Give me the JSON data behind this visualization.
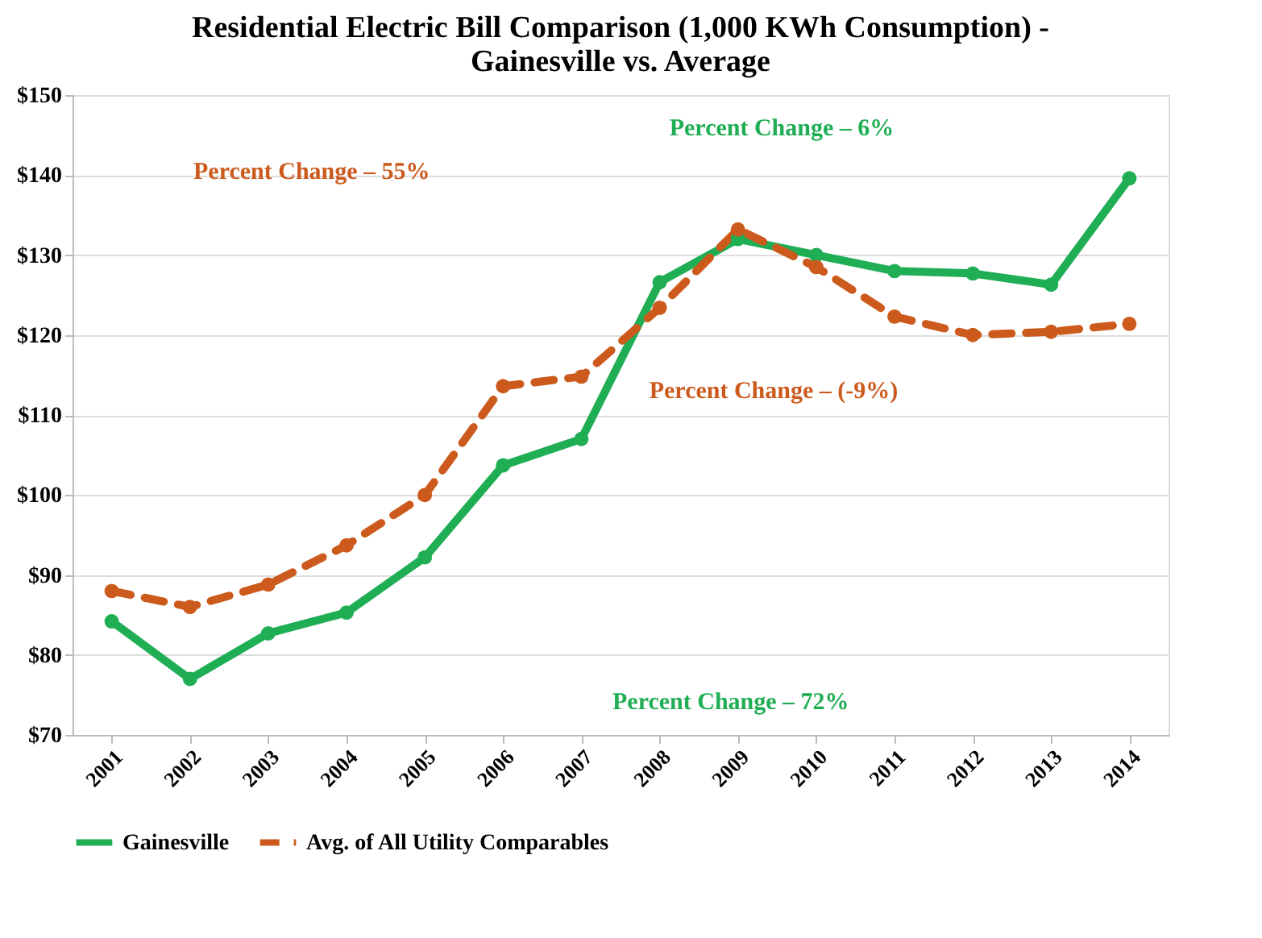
{
  "chart_data": {
    "type": "line",
    "title": "Residential Electric Bill Comparison (1,000 KWh Consumption) -\nGainesville vs. Average",
    "categories": [
      "2001",
      "2002",
      "2003",
      "2004",
      "2005",
      "2006",
      "2007",
      "2008",
      "2009",
      "2010",
      "2011",
      "2012",
      "2013",
      "2014"
    ],
    "series": [
      {
        "name": "Gainesville",
        "color": "#1fae54",
        "line_style": "solid",
        "values": [
          84.2,
          77,
          82.7,
          85.3,
          92.2,
          103.7,
          107,
          126.6,
          132,
          130,
          128,
          127.7,
          126.3,
          139.6
        ]
      },
      {
        "name": "Avg. of All Utility Comparables",
        "color": "#cc5a1c",
        "line_style": "dashed",
        "values": [
          88,
          86,
          88.8,
          93.7,
          100,
          113.6,
          114.8,
          123.4,
          133.2,
          128.5,
          122.3,
          120,
          120.4,
          121.4
        ]
      }
    ],
    "ylim": [
      70,
      150
    ],
    "yticks": [
      {
        "value": 70,
        "label": "$70"
      },
      {
        "value": 80,
        "label": "$80"
      },
      {
        "value": 90,
        "label": "$90"
      },
      {
        "value": 100,
        "label": "$100"
      },
      {
        "value": 110,
        "label": "$110"
      },
      {
        "value": 120,
        "label": "$120"
      },
      {
        "value": 130,
        "label": "$130"
      },
      {
        "value": 140,
        "label": "$140"
      },
      {
        "value": 150,
        "label": "$150"
      }
    ],
    "grid": "y",
    "legend": "bottom",
    "marker": "circle",
    "annotations": [
      "Percent Change – 55%",
      "Percent Change – 72%",
      "Percent Change – 6%",
      "Percent Change – (-9%)"
    ]
  }
}
